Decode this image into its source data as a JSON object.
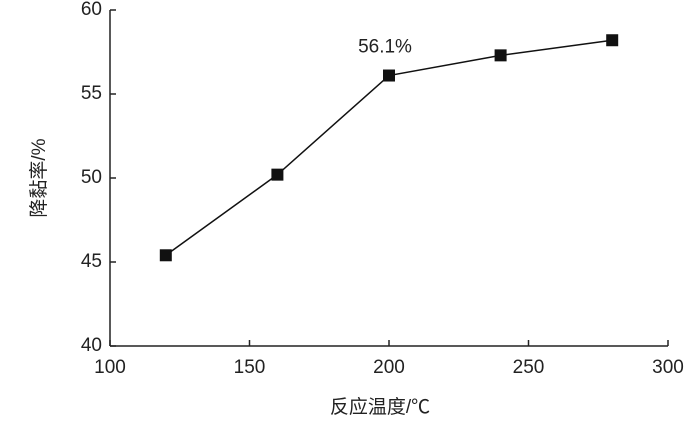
{
  "chart_data": {
    "type": "line",
    "x_label": "反应温度/℃",
    "y_label": "降黏率/%",
    "x": [
      120,
      160,
      200,
      240,
      280
    ],
    "series": [
      {
        "color": "#111111",
        "values": [
          45.4,
          50.2,
          56.1,
          57.3,
          58.2
        ],
        "value_labels": [
          null,
          null,
          "56.1%",
          null,
          null
        ]
      }
    ],
    "xlim": [
      100,
      300
    ],
    "xticks": [
      100,
      150,
      200,
      250,
      300
    ],
    "ylim": [
      40,
      60
    ],
    "yticks": [
      40,
      45,
      50,
      55,
      60
    ],
    "grid": false
  }
}
